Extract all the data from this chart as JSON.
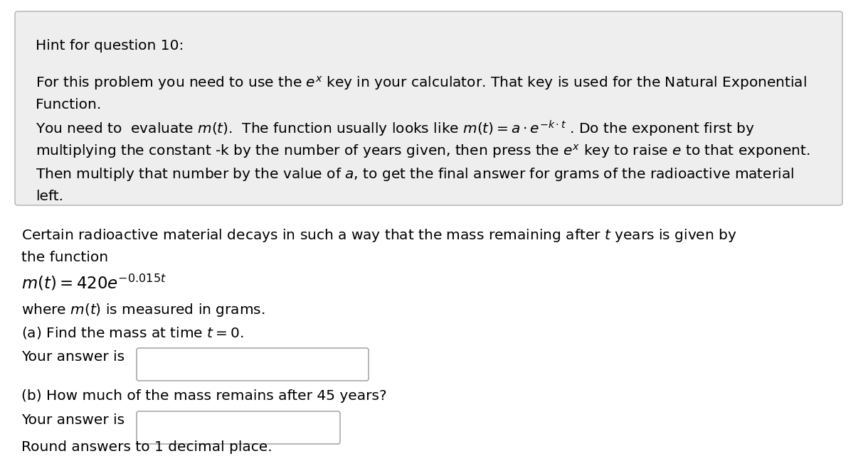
{
  "bg_color": "#ffffff",
  "hint_box_bg": "#eeeeee",
  "hint_box_border": "#bbbbbb",
  "font_size": 14.5,
  "font_size_eq": 16.5,
  "hint_title": "Hint for question 10:",
  "hint_line1": "For this problem you need to use the $e^x$ key in your calculator. That key is used for the Natural Exponential",
  "hint_line2": "Function.",
  "hint_line3": "You need to  evaluate $m(t)$.  The function usually looks like $m(t) = a \\cdot e^{-k \\cdot t}$ . Do the exponent first by",
  "hint_line4": "multiplying the constant -k by the number of years given, then press the $e^x$ key to raise $e$ to that exponent.",
  "hint_line5": "Then multiply that number by the value of $a$, to get the final answer for grams of the radioactive material",
  "hint_line6": "left.",
  "prob_line1": "Certain radioactive material decays in such a way that the mass remaining after $t$ years is given by",
  "prob_line2": "the function",
  "prob_line3": "$m(t) = 420e^{-0.015t}$",
  "prob_line4": "where $m(t)$ is measured in grams.",
  "prob_line5": "(a) Find the mass at time $t = 0$.",
  "prob_ans_a": "Your answer is",
  "prob_line6": "(b) How much of the mass remains after 45 years?",
  "prob_ans_b": "Your answer is",
  "prob_last": "Round answers to 1 decimal place."
}
